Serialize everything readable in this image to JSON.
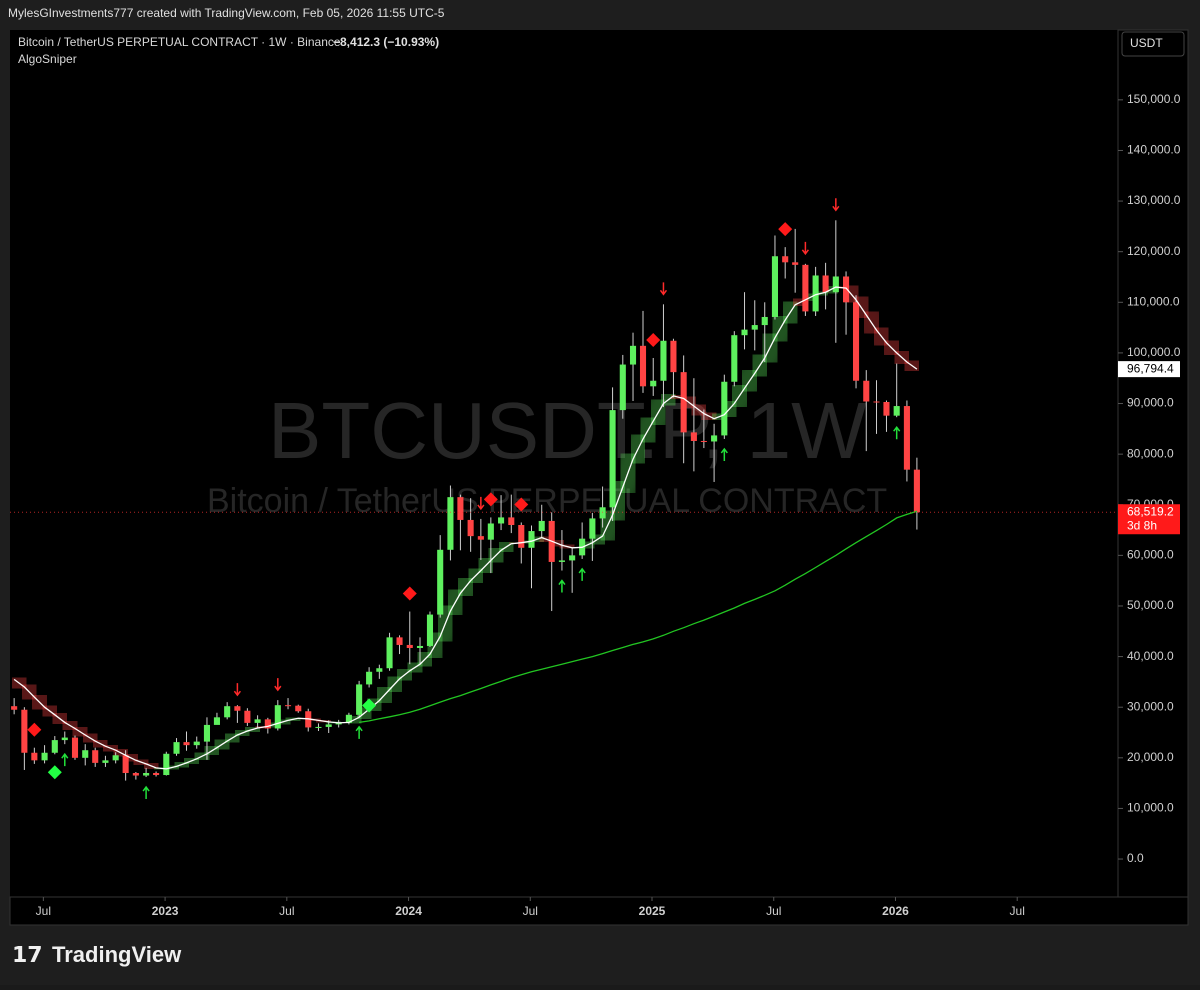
{
  "header": {
    "credit": "MylesGInvestments777 created with TradingView.com, Feb 05, 2026 11:55 UTC-5"
  },
  "footer": {
    "logo": "TradingView"
  },
  "chart_data": {
    "type": "candlestick",
    "symbol": "Bitcoin / TetherUS PERPETUAL CONTRACT · 1W · Binance",
    "change": "−8,412.3 (−10.93%)",
    "indicator": "AlgoSniper",
    "watermark_symbol": "BTCUSDT.P, 1W",
    "watermark_name": "Bitcoin / TetherUS PERPETUAL CONTRACT",
    "currency": "USDT",
    "countdown": "3d 8h",
    "up_color": "#5ef05e",
    "down_color": "#ff4444",
    "wick_color": "#d0d0d0",
    "ma_color": "#ffffff",
    "long_ma_color": "#22c522",
    "xlim": [
      2022.363,
      2026.914
    ],
    "ylim": [
      -7500,
      163800
    ],
    "yticks": [
      {
        "value": 0,
        "label": "0.0"
      },
      {
        "value": 10000,
        "label": "10,000.0"
      },
      {
        "value": 20000,
        "label": "20,000.0"
      },
      {
        "value": 30000,
        "label": "30,000.0"
      },
      {
        "value": 40000,
        "label": "40,000.0"
      },
      {
        "value": 50000,
        "label": "50,000.0"
      },
      {
        "value": 60000,
        "label": "60,000.0"
      },
      {
        "value": 70000,
        "label": "70,000.0"
      },
      {
        "value": 80000,
        "label": "80,000.0"
      },
      {
        "value": 90000,
        "label": "90,000.0"
      },
      {
        "value": 100000,
        "label": "100,000.0"
      },
      {
        "value": 110000,
        "label": "110,000.0"
      },
      {
        "value": 120000,
        "label": "120,000.0"
      },
      {
        "value": 130000,
        "label": "130,000.0"
      },
      {
        "value": 140000,
        "label": "140,000.0"
      },
      {
        "value": 150000,
        "label": "150,000.0"
      }
    ],
    "xticks": [
      {
        "value": 2022.5,
        "label": "Jul"
      },
      2023,
      {
        "value": 2023.5,
        "label": "Jul"
      },
      2024,
      {
        "value": 2024.5,
        "label": "Jul"
      },
      2025,
      {
        "value": 2025.5,
        "label": "Jul"
      },
      2026,
      {
        "value": 2026.5,
        "label": "Jul"
      }
    ],
    "price_labels": [
      {
        "value": 96794.4,
        "label": "96,794.4"
      },
      {
        "value": 68519.2,
        "label": "68,519.2"
      }
    ],
    "x": [
      2022.38,
      2022.422,
      2022.463,
      2022.505,
      2022.547,
      2022.588,
      2022.63,
      2022.672,
      2022.713,
      2022.755,
      2022.797,
      2022.838,
      2022.88,
      2022.922,
      2022.963,
      2023.005,
      2023.047,
      2023.088,
      2023.13,
      2023.172,
      2023.213,
      2023.255,
      2023.297,
      2023.338,
      2023.38,
      2023.422,
      2023.463,
      2023.505,
      2023.547,
      2023.588,
      2023.63,
      2023.672,
      2023.713,
      2023.755,
      2023.797,
      2023.838,
      2023.88,
      2023.922,
      2023.963,
      2024.005,
      2024.047,
      2024.088,
      2024.13,
      2024.172,
      2024.213,
      2024.255,
      2024.297,
      2024.338,
      2024.38,
      2024.422,
      2024.463,
      2024.505,
      2024.547,
      2024.588,
      2024.63,
      2024.672,
      2024.713,
      2024.755,
      2024.797,
      2024.838,
      2024.88,
      2024.922,
      2024.963,
      2025.005,
      2025.047,
      2025.088,
      2025.13,
      2025.172,
      2025.213,
      2025.255,
      2025.297,
      2025.338,
      2025.38,
      2025.422,
      2025.463,
      2025.505,
      2025.547,
      2025.588,
      2025.63,
      2025.672,
      2025.713,
      2025.755,
      2025.797,
      2025.838,
      2025.88,
      2025.922,
      2025.963,
      2026.005,
      2026.047,
      2026.088
    ],
    "open": [
      30200,
      29500,
      21000,
      19500,
      21000,
      23500,
      24000,
      20000,
      21500,
      19000,
      19500,
      20500,
      17000,
      16500,
      17000,
      16600,
      20800,
      23100,
      22500,
      23200,
      26500,
      28000,
      30200,
      29300,
      26900,
      27600,
      25800,
      30400,
      30300,
      29200,
      26000,
      26100,
      26600,
      26900,
      28500,
      34500,
      37000,
      37700,
      43800,
      42300,
      41700,
      42100,
      48300,
      61100,
      71500,
      67000,
      63800,
      63100,
      66300,
      67500,
      66000,
      61500,
      64800,
      66800,
      58700,
      59000,
      60000,
      63300,
      67300,
      69500,
      88700,
      97700,
      101400,
      93400,
      94500,
      102400,
      96200,
      84300,
      82600,
      82500,
      83700,
      94300,
      103500,
      104600,
      105500,
      107100,
      119100,
      117900,
      117400,
      108200,
      115300,
      112000,
      115100,
      110000,
      94500,
      90400,
      90300,
      87600,
      89500,
      76931.5
    ],
    "high": [
      31800,
      30000,
      22000,
      22500,
      24300,
      25200,
      24400,
      22700,
      22000,
      20400,
      21100,
      21500,
      17200,
      18000,
      17300,
      21200,
      23900,
      25200,
      24200,
      28000,
      28900,
      31000,
      30400,
      29800,
      28400,
      27900,
      31400,
      31800,
      30500,
      29700,
      26800,
      27400,
      27500,
      28900,
      35200,
      37900,
      38400,
      44700,
      44200,
      48900,
      43800,
      48900,
      64000,
      73800,
      72000,
      71300,
      67200,
      67500,
      71900,
      72000,
      66500,
      65900,
      70000,
      68500,
      65000,
      61500,
      66500,
      68400,
      73600,
      93200,
      99600,
      104000,
      108300,
      99000,
      109600,
      102800,
      99500,
      95000,
      88800,
      86000,
      95700,
      104300,
      112000,
      110400,
      110000,
      123200,
      120900,
      124500,
      117600,
      117000,
      117800,
      126200,
      116100,
      111400,
      96600,
      94600,
      90600,
      97900,
      90600,
      79300
    ],
    "low": [
      28600,
      17600,
      18800,
      18900,
      20700,
      22700,
      19600,
      18500,
      18200,
      18200,
      18900,
      15500,
      15700,
      16200,
      16300,
      16500,
      20400,
      21400,
      21800,
      19600,
      26700,
      27600,
      26900,
      26300,
      25800,
      24800,
      25400,
      29600,
      28900,
      25200,
      25300,
      24900,
      26000,
      26600,
      28100,
      33900,
      35600,
      37200,
      40500,
      38500,
      38600,
      41900,
      47700,
      59000,
      61000,
      60700,
      59100,
      56500,
      65000,
      64400,
      58400,
      53500,
      63500,
      49000,
      57000,
      52600,
      59300,
      58900,
      65500,
      66800,
      87000,
      90500,
      92100,
      91500,
      89300,
      91200,
      78200,
      76600,
      81200,
      74500,
      83000,
      93400,
      100700,
      100500,
      98200,
      106600,
      114700,
      111900,
      107300,
      107300,
      108600,
      102000,
      103600,
      93000,
      80600,
      84000,
      84400,
      87300,
      74600,
      65100
    ],
    "close": [
      29500,
      21000,
      19500,
      21000,
      23500,
      24000,
      20000,
      21500,
      19000,
      19500,
      20500,
      17000,
      16500,
      17000,
      16600,
      20800,
      23100,
      22500,
      23200,
      26500,
      28000,
      30200,
      29300,
      26900,
      27600,
      25800,
      30400,
      30300,
      29200,
      26000,
      26100,
      26600,
      26900,
      28500,
      34500,
      37000,
      37700,
      43800,
      42300,
      41700,
      42100,
      48300,
      61100,
      71500,
      67000,
      63800,
      63100,
      66300,
      67500,
      66000,
      61500,
      64800,
      66800,
      58700,
      59000,
      60000,
      63300,
      67300,
      69500,
      88700,
      97700,
      101400,
      93400,
      94500,
      102400,
      96200,
      84300,
      82600,
      82500,
      83700,
      94300,
      103500,
      104600,
      105500,
      107100,
      119100,
      117900,
      117400,
      108200,
      115300,
      112000,
      115100,
      110000,
      94500,
      90400,
      90300,
      87600,
      89500,
      76931.5,
      68519.2
    ],
    "ma_values": [
      35500,
      34000,
      32000,
      30000,
      28500,
      27000,
      25800,
      24500,
      23300,
      22300,
      21500,
      20500,
      19500,
      18800,
      18000,
      17800,
      18300,
      19000,
      19800,
      20800,
      22000,
      23300,
      24500,
      25300,
      25900,
      26200,
      26800,
      27400,
      27800,
      27700,
      27400,
      27100,
      26900,
      27000,
      28000,
      29600,
      31300,
      33500,
      35600,
      37200,
      38500,
      40500,
      44000,
      49000,
      52500,
      55000,
      57000,
      59000,
      61000,
      62300,
      62500,
      62800,
      63500,
      62800,
      62000,
      61500,
      61600,
      62500,
      63800,
      68000,
      73500,
      79000,
      83000,
      86500,
      90000,
      91500,
      91000,
      89500,
      88000,
      87000,
      87800,
      90000,
      93000,
      96000,
      99000,
      103000,
      106500,
      109500,
      110500,
      111500,
      112000,
      113000,
      112800,
      110500,
      107500,
      104500,
      102000,
      100000,
      98200,
      96794.4
    ],
    "long_ma_values": [
      null,
      null,
      null,
      null,
      null,
      null,
      null,
      null,
      null,
      null,
      null,
      null,
      null,
      null,
      null,
      null,
      null,
      null,
      null,
      null,
      null,
      null,
      null,
      null,
      null,
      null,
      null,
      null,
      null,
      null,
      null,
      null,
      null,
      null,
      27000,
      27300,
      27700,
      28100,
      28500,
      29000,
      29600,
      30300,
      31000,
      31700,
      32300,
      33000,
      33700,
      34400,
      35100,
      35800,
      36400,
      37000,
      37500,
      38000,
      38500,
      39000,
      39500,
      40000,
      40600,
      41200,
      41800,
      42400,
      42900,
      43500,
      44200,
      45000,
      45700,
      46500,
      47200,
      48000,
      48800,
      49600,
      50500,
      51300,
      52100,
      53000,
      54100,
      55300,
      56400,
      57600,
      58800,
      60000,
      61300,
      62500,
      63700,
      64900,
      66100,
      67400,
      68100,
      68700
    ],
    "sell_diamond_at": [
      2,
      39,
      47,
      50,
      63,
      76
    ],
    "buy_diamond_at": [
      4,
      35
    ],
    "down_arrow_at": [
      22,
      26,
      46,
      64,
      78,
      81
    ],
    "up_arrow_at": [
      5,
      13,
      34,
      54,
      56,
      70,
      87
    ]
  }
}
